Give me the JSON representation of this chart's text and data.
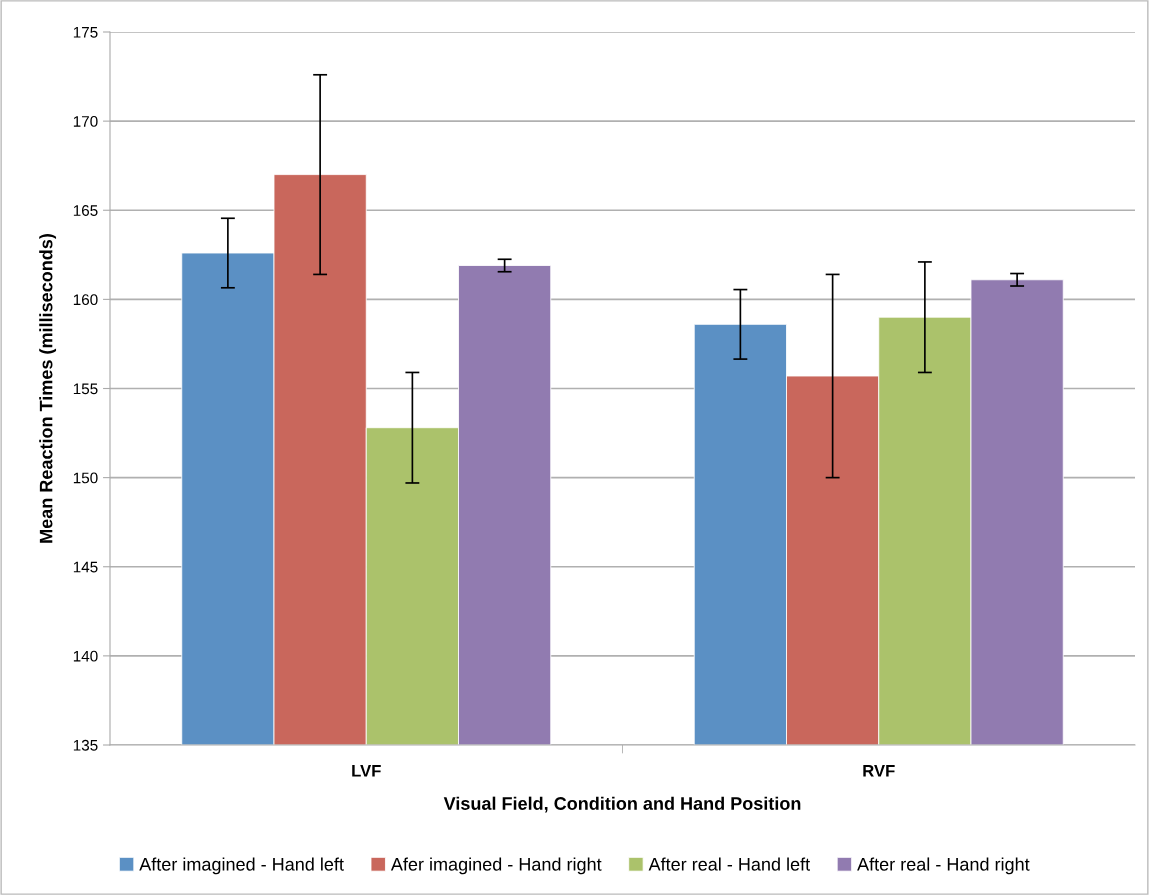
{
  "chart_data": {
    "type": "bar",
    "xlabel": "Visual Field, Condition and Hand Position",
    "ylabel": "Mean Reaction Times (milliseconds)",
    "categories": [
      "LVF",
      "RVF"
    ],
    "series": [
      {
        "name": "After imagined - Hand left",
        "color": "#5b90c4",
        "values": [
          162.6,
          158.6
        ],
        "errors": [
          1.95,
          1.95
        ]
      },
      {
        "name": "Afer imagined - Hand right",
        "color": "#c9675c",
        "values": [
          167.0,
          155.7
        ],
        "errors": [
          5.6,
          5.7
        ]
      },
      {
        "name": "After real - Hand left",
        "color": "#abc26b",
        "values": [
          152.8,
          159.0
        ],
        "errors": [
          3.1,
          3.1
        ]
      },
      {
        "name": "After real - Hand right",
        "color": "#917bb0",
        "values": [
          161.9,
          161.1
        ],
        "errors": [
          0.35,
          0.35
        ]
      }
    ],
    "ylim": [
      135,
      175
    ],
    "yticks": [
      135,
      140,
      145,
      150,
      155,
      160,
      165,
      170,
      175
    ],
    "grid": "y",
    "legend": "bottom"
  }
}
